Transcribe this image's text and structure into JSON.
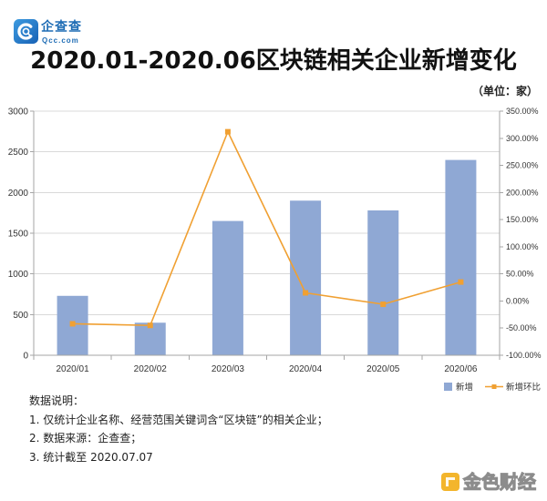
{
  "logo": {
    "name": "企查查",
    "domain": "Qcc.com",
    "icon": "qcc-logo-icon",
    "color": "#1F6DB5"
  },
  "chart_data": {
    "type": "bar",
    "title": "2020.01-2020.06区块链相关企业新增变化",
    "unit_note": "（单位：家）",
    "categories": [
      "2020/01",
      "2020/02",
      "2020/03",
      "2020/04",
      "2020/05",
      "2020/06"
    ],
    "series": [
      {
        "name": "新增",
        "type": "bar",
        "axis": "left",
        "color": "#8FA8D4",
        "values": [
          730,
          400,
          1650,
          1900,
          1780,
          2400
        ]
      },
      {
        "name": "新增环比",
        "type": "line",
        "axis": "right",
        "color": "#F0A032",
        "values": [
          -42,
          -45,
          312,
          15,
          -6,
          35
        ]
      }
    ],
    "ylim": [
      0,
      3000
    ],
    "yticks": [
      0,
      500,
      1000,
      1500,
      2000,
      2500,
      3000
    ],
    "y2lim": [
      -100,
      350
    ],
    "y2ticks": [
      "-100.00%",
      "-50.00%",
      "0.00%",
      "50.00%",
      "100.00%",
      "150.00%",
      "200.00%",
      "250.00%",
      "300.00%",
      "350.00%"
    ],
    "grid": true,
    "legend": "bottom-right"
  },
  "notes": {
    "heading": "数据说明：",
    "items": [
      "1. 仅统计企业名称、经营范围关键词含“区块链”的相关企业；",
      "2. 数据来源：企查查；",
      "3. 统计截至 2020.07.07"
    ]
  },
  "watermark": {
    "text": "金色财经",
    "icon": "jinse-logo-icon",
    "color": "#F3B52C"
  }
}
